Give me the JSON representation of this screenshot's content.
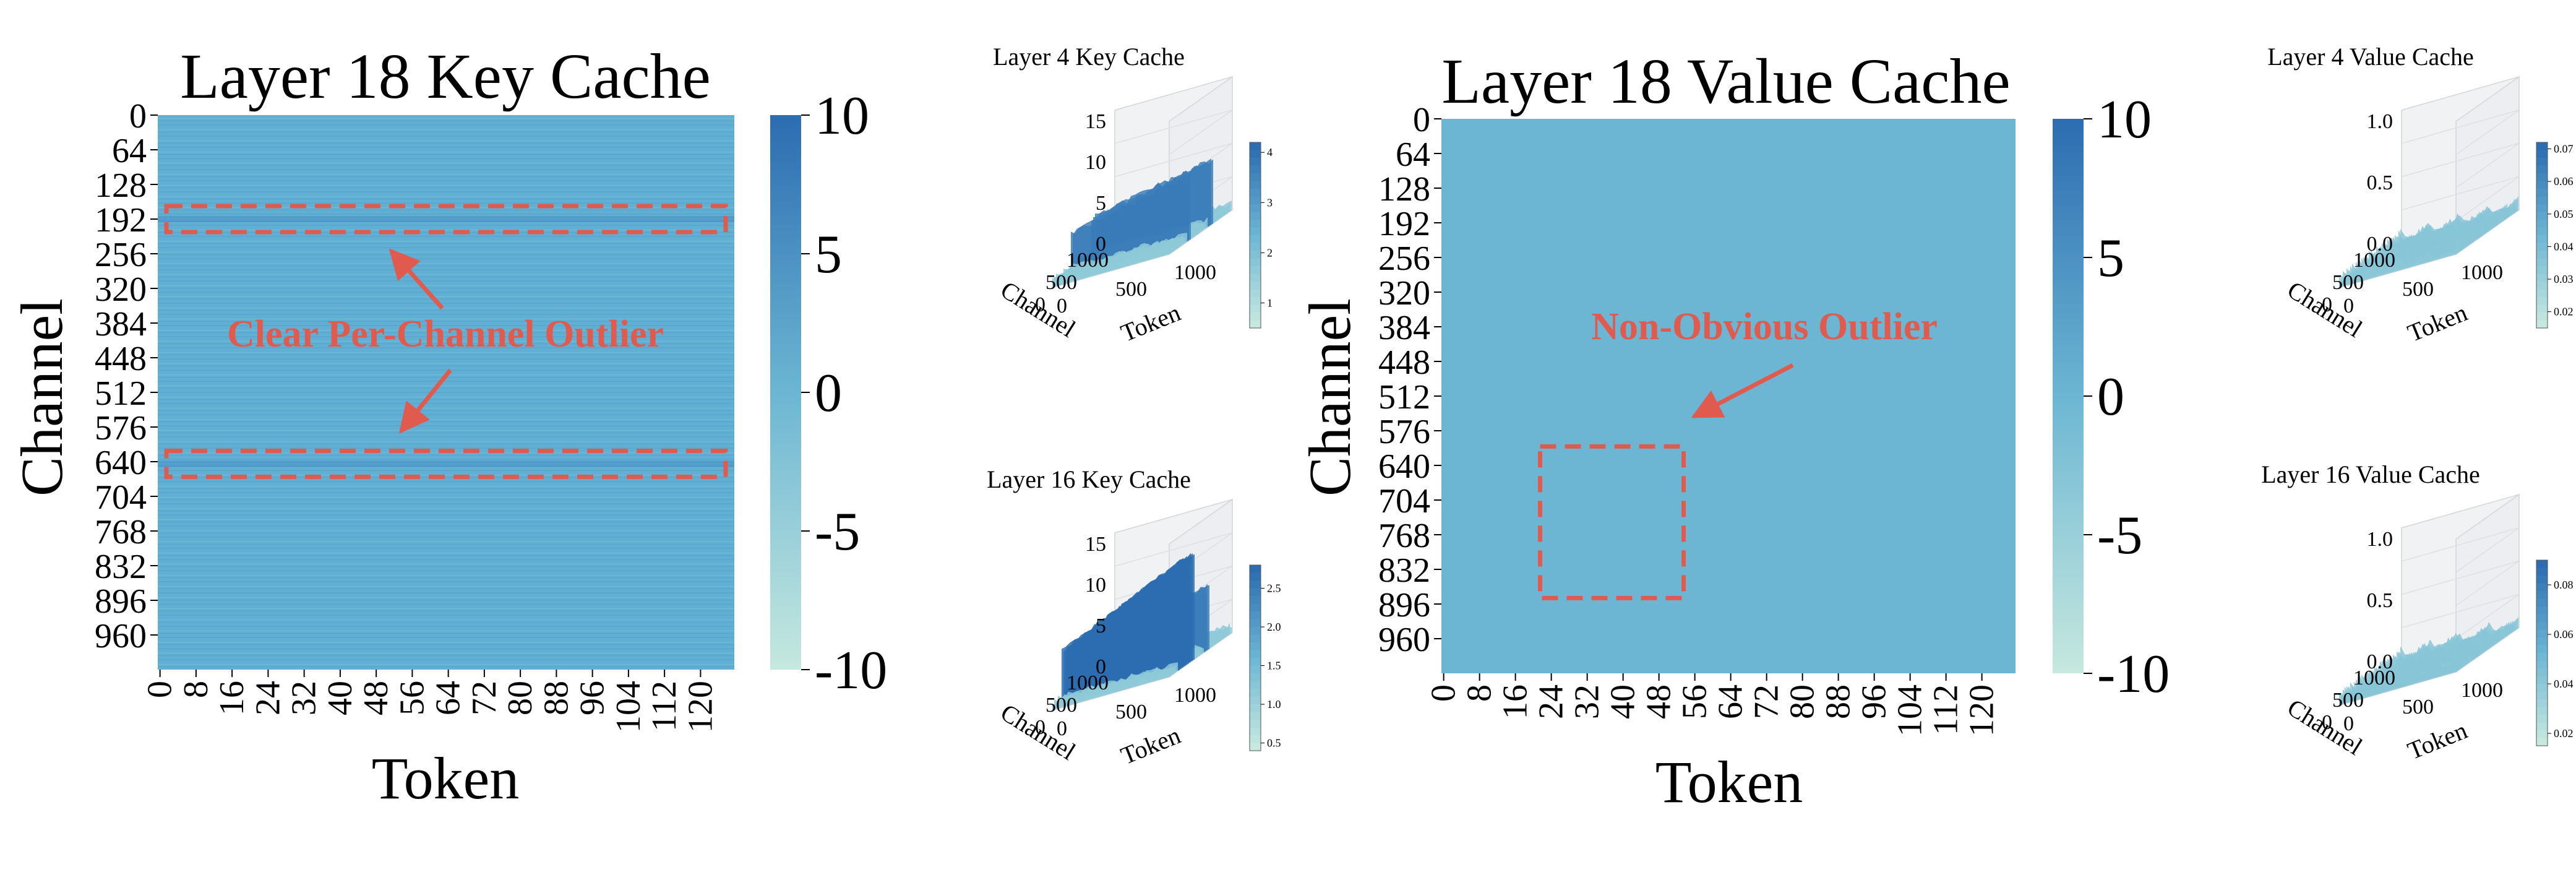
{
  "colors": {
    "low": "#c6e8df",
    "mid": "#6cb6d3",
    "high": "#2c6cb1",
    "annotation": "#e05a4e",
    "text": "#000000"
  },
  "chart_data": [
    {
      "id": "k18",
      "type": "heatmap",
      "title": "Layer 18 Key Cache",
      "xlabel": "Token",
      "ylabel": "Channel",
      "xticks": [
        "0",
        "8",
        "16",
        "24",
        "32",
        "40",
        "48",
        "56",
        "64",
        "72",
        "80",
        "88",
        "96",
        "104",
        "112",
        "120"
      ],
      "yticks": [
        "0",
        "64",
        "128",
        "192",
        "256",
        "320",
        "384",
        "448",
        "512",
        "576",
        "640",
        "704",
        "768",
        "832",
        "896",
        "960"
      ],
      "xlim": [
        0,
        128
      ],
      "ylim": [
        0,
        1024
      ],
      "colorbar": {
        "ticks": [
          "10",
          "5",
          "0",
          "-5",
          "-10"
        ],
        "range": [
          -10,
          10
        ]
      },
      "annotation": {
        "text": "Clear Per-Channel Outlier",
        "boxes": [
          {
            "channels": [
              168,
              216
            ]
          },
          {
            "channels": [
              620,
              668
            ]
          }
        ]
      }
    },
    {
      "id": "k4",
      "type": "surface3d",
      "title": "Layer 4 Key Cache",
      "xlabel": "Token",
      "ylabel": "Channel",
      "zticks": [
        "15",
        "10",
        "5",
        "0"
      ],
      "channel_ticks": [
        "1000",
        "500",
        "0"
      ],
      "token_ticks": [
        "0",
        "500",
        "1000"
      ],
      "colorbar_ticks": [
        "4",
        "3",
        "2",
        "1"
      ],
      "colorbar_range": [
        0.5,
        4.2
      ]
    },
    {
      "id": "k16",
      "type": "surface3d",
      "title": "Layer 16 Key Cache",
      "xlabel": "Token",
      "ylabel": "Channel",
      "zticks": [
        "15",
        "10",
        "5",
        "0"
      ],
      "channel_ticks": [
        "1000",
        "500",
        "0"
      ],
      "token_ticks": [
        "0",
        "500",
        "1000"
      ],
      "colorbar_ticks": [
        "2.5",
        "2.0",
        "1.5",
        "1.0",
        "0.5"
      ],
      "colorbar_range": [
        0.4,
        2.8
      ]
    },
    {
      "id": "v18",
      "type": "heatmap",
      "title": "Layer 18 Value Cache",
      "xlabel": "Token",
      "ylabel": "Channel",
      "xticks": [
        "0",
        "8",
        "16",
        "24",
        "32",
        "40",
        "48",
        "56",
        "64",
        "72",
        "80",
        "88",
        "96",
        "104",
        "112",
        "120"
      ],
      "yticks": [
        "0",
        "64",
        "128",
        "192",
        "256",
        "320",
        "384",
        "448",
        "512",
        "576",
        "640",
        "704",
        "768",
        "832",
        "896",
        "960"
      ],
      "xlim": [
        0,
        128
      ],
      "ylim": [
        0,
        1024
      ],
      "colorbar": {
        "ticks": [
          "10",
          "5",
          "0",
          "-5",
          "-10"
        ],
        "range": [
          -10,
          10
        ]
      },
      "annotation": {
        "text": "Non-Obvious Outlier",
        "boxes": [
          {
            "tokens": [
              22,
              54
            ],
            "channels": [
              605,
              885
            ]
          }
        ]
      }
    },
    {
      "id": "v4",
      "type": "surface3d",
      "title": "Layer 4 Value Cache",
      "xlabel": "Token",
      "ylabel": "Channel",
      "zticks": [
        "1.0",
        "0.5",
        "0.0"
      ],
      "channel_ticks": [
        "1000",
        "500",
        "0"
      ],
      "token_ticks": [
        "0",
        "500",
        "1000"
      ],
      "colorbar_ticks": [
        "0.07",
        "0.06",
        "0.05",
        "0.04",
        "0.03",
        "0.02"
      ],
      "colorbar_range": [
        0.015,
        0.072
      ]
    },
    {
      "id": "v16",
      "type": "surface3d",
      "title": "Layer 16 Value Cache",
      "xlabel": "Token",
      "ylabel": "Channel",
      "zticks": [
        "1.0",
        "0.5",
        "0.0"
      ],
      "channel_ticks": [
        "1000",
        "500",
        "0"
      ],
      "token_ticks": [
        "0",
        "500",
        "1000"
      ],
      "colorbar_ticks": [
        "0.08",
        "0.06",
        "0.04",
        "0.02"
      ],
      "colorbar_range": [
        0.015,
        0.09
      ]
    }
  ]
}
